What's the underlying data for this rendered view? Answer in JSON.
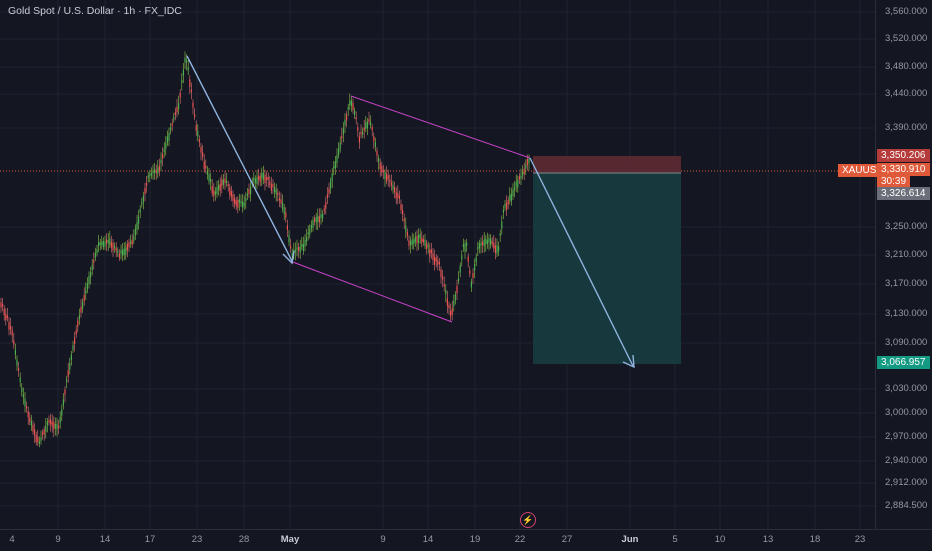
{
  "header": {
    "title": "Gold Spot / U.S. Dollar · 1h · FX_IDC"
  },
  "price_axis": {
    "ticks": [
      "3,560.000",
      "3,520.000",
      "3,480.000",
      "3,440.000",
      "3,390.000",
      "3,250.000",
      "3,210.000",
      "3,170.000",
      "3,130.000",
      "3,090.000",
      "3,030.000",
      "3,000.000",
      "2,970.000",
      "2,940.000",
      "2,912.000",
      "2,884.500"
    ],
    "symbol_tag": "XAUUSD",
    "stop_price": "3,350.206",
    "last_price": "3,330.910",
    "countdown": "30:39",
    "entry_price": "3,326.614",
    "target_price": "3,066.957"
  },
  "time_axis": {
    "ticks": [
      "4",
      "9",
      "14",
      "17",
      "23",
      "28",
      "May",
      "9",
      "14",
      "19",
      "22",
      "27",
      "Jun",
      "5",
      "10",
      "13",
      "18",
      "23"
    ]
  },
  "colors": {
    "background": "#141722",
    "bull": "#26a69a",
    "bear": "#ef5350",
    "drawing_purple": "#cc44cc",
    "arrow_blue": "#8fb3e0",
    "stop_zone": "#5a2a33",
    "target_zone": "#173b3f",
    "last_tag": "#e05a3a",
    "target_tag": "#149a82",
    "entry_tag": "#6b6f7a"
  },
  "icons": [
    "lightning-icon"
  ]
}
